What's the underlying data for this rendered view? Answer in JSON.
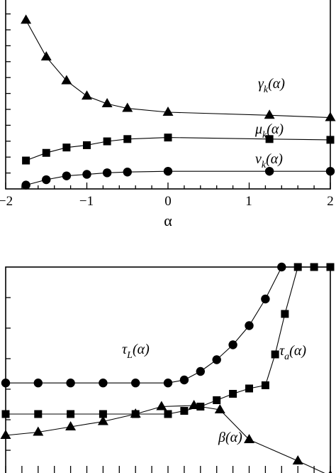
{
  "chart_data": [
    {
      "type": "line",
      "xlabel": "α",
      "xlim": [
        -2,
        2
      ],
      "x_ticks": [
        "−2",
        "−1",
        "0",
        "1",
        "2"
      ],
      "series": [
        {
          "name": "γk(α)",
          "marker": "triangle",
          "points": [
            [
              -1.75,
              2.2
            ],
            [
              -1.5,
              1.72
            ],
            [
              -1.25,
              1.41
            ],
            [
              -1.0,
              1.21
            ],
            [
              -0.75,
              1.11
            ],
            [
              -0.5,
              1.05
            ],
            [
              0.0,
              1.0
            ],
            [
              1.25,
              0.96
            ],
            [
              2.0,
              0.93
            ]
          ]
        },
        {
          "name": "μk(α)",
          "marker": "square",
          "points": [
            [
              -1.75,
              0.37
            ],
            [
              -1.5,
              0.47
            ],
            [
              -1.25,
              0.54
            ],
            [
              -1.0,
              0.57
            ],
            [
              -0.75,
              0.62
            ],
            [
              -0.5,
              0.65
            ],
            [
              0.0,
              0.67
            ],
            [
              1.25,
              0.65
            ],
            [
              2.0,
              0.64
            ]
          ]
        },
        {
          "name": "νk(α)",
          "marker": "circle",
          "points": [
            [
              -1.75,
              0.05
            ],
            [
              -1.5,
              0.12
            ],
            [
              -1.25,
              0.17
            ],
            [
              -1.0,
              0.19
            ],
            [
              -0.75,
              0.21
            ],
            [
              -0.5,
              0.22
            ],
            [
              0.0,
              0.23
            ],
            [
              1.25,
              0.23
            ],
            [
              2.0,
              0.23
            ]
          ]
        }
      ],
      "annotations": [
        {
          "base": "γ",
          "sub": "k",
          "tail": "(α)"
        },
        {
          "base": "μ",
          "sub": "k",
          "tail": "(α)"
        },
        {
          "base": "ν",
          "sub": "k",
          "tail": "(α)"
        }
      ]
    },
    {
      "type": "line",
      "series": [
        {
          "name": "τL(α)",
          "marker": "circle",
          "points": [
            [
              0,
              0.456
            ],
            [
              1,
              0.456
            ],
            [
              2,
              0.456
            ],
            [
              3,
              0.456
            ],
            [
              4,
              0.456
            ],
            [
              5,
              0.456
            ],
            [
              5.5,
              0.47
            ],
            [
              6,
              0.51
            ],
            [
              6.5,
              0.565
            ],
            [
              7,
              0.635
            ],
            [
              7.5,
              0.725
            ],
            [
              8,
              0.85
            ],
            [
              8.5,
              1.0
            ]
          ]
        },
        {
          "name": "τa(α)",
          "marker": "square",
          "points": [
            [
              0,
              0.31
            ],
            [
              1,
              0.31
            ],
            [
              2,
              0.31
            ],
            [
              3,
              0.31
            ],
            [
              4,
              0.31
            ],
            [
              5,
              0.31
            ],
            [
              5.5,
              0.325
            ],
            [
              6,
              0.345
            ],
            [
              6.5,
              0.375
            ],
            [
              7,
              0.405
            ],
            [
              7.5,
              0.43
            ],
            [
              8,
              0.445
            ],
            [
              8.3,
              0.59
            ],
            [
              8.6,
              0.78
            ],
            [
              9,
              1.0
            ],
            [
              9.5,
              1.0
            ],
            [
              10,
              1.0
            ]
          ]
        },
        {
          "name": "β(α)",
          "marker": "triangle",
          "points": [
            [
              0,
              0.21
            ],
            [
              1,
              0.225
            ],
            [
              2,
              0.25
            ],
            [
              3,
              0.275
            ],
            [
              4,
              0.31
            ],
            [
              4.8,
              0.345
            ],
            [
              5.8,
              0.35
            ],
            [
              6.6,
              0.33
            ],
            [
              7.5,
              0.19
            ],
            [
              9,
              0.09
            ],
            [
              10,
              0.02
            ]
          ]
        }
      ],
      "annotations": [
        {
          "base": "τ",
          "sub": "L",
          "tail": "(α)"
        },
        {
          "base": "τ",
          "sub": "a",
          "tail": "(α)"
        },
        {
          "base": "β",
          "sub": "",
          "tail": "(α)"
        }
      ]
    }
  ]
}
